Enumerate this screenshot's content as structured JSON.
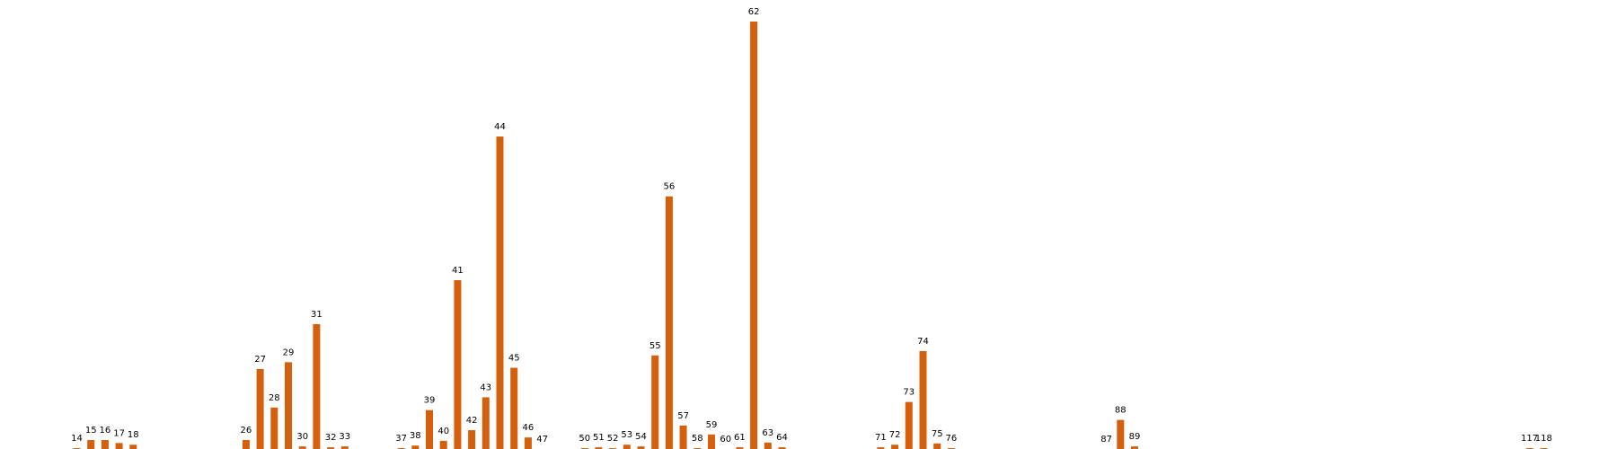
{
  "chart_data": {
    "type": "bar",
    "x_label_type": "categorical-number",
    "ylim": [
      0,
      1
    ],
    "grid": false,
    "legend": "none",
    "bar_color": "#d45f0c",
    "categories": [
      "14",
      "15",
      "16",
      "17",
      "18",
      "26",
      "27",
      "28",
      "29",
      "30",
      "31",
      "32",
      "33",
      "37",
      "38",
      "39",
      "40",
      "41",
      "42",
      "43",
      "44",
      "45",
      "46",
      "47",
      "50",
      "51",
      "52",
      "53",
      "54",
      "55",
      "56",
      "57",
      "58",
      "59",
      "60",
      "61",
      "62",
      "63",
      "64",
      "71",
      "72",
      "73",
      "74",
      "75",
      "76",
      "87",
      "88",
      "89",
      "117",
      "118"
    ],
    "values": [
      0.002,
      0.021,
      0.021,
      0.014,
      0.01,
      0.021,
      0.187,
      0.097,
      0.203,
      0.006,
      0.292,
      0.004,
      0.006,
      0.002,
      0.008,
      0.091,
      0.019,
      0.395,
      0.044,
      0.121,
      0.731,
      0.19,
      0.027,
      0.0,
      0.002,
      0.004,
      0.002,
      0.01,
      0.006,
      0.219,
      0.591,
      0.055,
      0.002,
      0.034,
      0.0,
      0.004,
      1.0,
      0.015,
      0.004,
      0.004,
      0.01,
      0.11,
      0.229,
      0.013,
      0.002,
      0.0,
      0.068,
      0.006,
      0.002,
      0.002
    ]
  }
}
